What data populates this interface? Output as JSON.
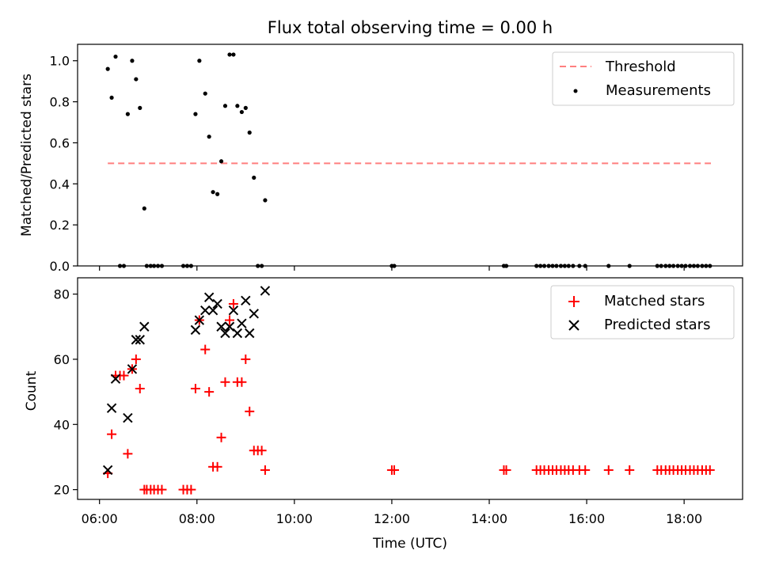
{
  "title": "Flux total observing time = 0.00 h",
  "colors": {
    "threshold": "#ff7f7f",
    "measurement": "#000000",
    "matched": "#ff0000",
    "predicted": "#000000"
  },
  "chart_data": [
    {
      "type": "scatter",
      "ylabel": "Matched/Predicted stars",
      "xlim": [
        5.55,
        19.2
      ],
      "ylim": [
        0,
        1.08
      ],
      "yticks": [
        0.0,
        0.2,
        0.4,
        0.6,
        0.8,
        1.0
      ],
      "ytick_labels": [
        "0.0",
        "0.2",
        "0.4",
        "0.6",
        "0.8",
        "1.0"
      ],
      "legend_position": "upper right",
      "threshold": {
        "name": "Threshold",
        "value": 0.5,
        "x": [
          6.17,
          18.55
        ]
      },
      "series": [
        {
          "name": "Measurements",
          "x": [
            6.17,
            6.25,
            6.33,
            6.42,
            6.5,
            6.58,
            6.67,
            6.75,
            6.83,
            6.92,
            6.97,
            7.05,
            7.12,
            7.2,
            7.28,
            7.72,
            7.8,
            7.88,
            7.97,
            8.05,
            8.17,
            8.25,
            8.33,
            8.42,
            8.5,
            8.58,
            8.67,
            8.75,
            8.83,
            8.92,
            9.0,
            9.08,
            9.17,
            9.25,
            9.33,
            9.4,
            12.0,
            12.05,
            14.3,
            14.35,
            14.97,
            15.05,
            15.13,
            15.22,
            15.3,
            15.38,
            15.47,
            15.55,
            15.63,
            15.72,
            15.85,
            15.97,
            16.45,
            16.88,
            17.45,
            17.53,
            17.62,
            17.7,
            17.78,
            17.87,
            17.95,
            18.03,
            18.12,
            18.2,
            18.28,
            18.37,
            18.45,
            18.53
          ],
          "y": [
            0.96,
            0.82,
            1.02,
            0,
            0,
            0.74,
            1.0,
            0.91,
            0.77,
            0.28,
            0,
            0,
            0,
            0,
            0,
            0,
            0,
            0,
            0.74,
            1.0,
            0.84,
            0.63,
            0.36,
            0.35,
            0.51,
            0.78,
            1.03,
            1.03,
            0.78,
            0.75,
            0.77,
            0.65,
            0.43,
            0,
            0,
            0.32,
            0,
            0,
            0,
            0,
            0,
            0,
            0,
            0,
            0,
            0,
            0,
            0,
            0,
            0,
            0,
            0,
            0,
            0,
            0,
            0,
            0,
            0,
            0,
            0,
            0,
            0,
            0,
            0,
            0,
            0,
            0,
            0
          ]
        }
      ]
    },
    {
      "type": "scatter",
      "xlabel": "Time (UTC)",
      "ylabel": "Count",
      "xlim": [
        5.55,
        19.2
      ],
      "ylim": [
        17,
        85
      ],
      "xticks": [
        6,
        8,
        10,
        12,
        14,
        16,
        18
      ],
      "xtick_labels": [
        "06:00",
        "08:00",
        "10:00",
        "12:00",
        "14:00",
        "16:00",
        "18:00"
      ],
      "yticks": [
        20,
        40,
        60,
        80
      ],
      "ytick_labels": [
        "20",
        "40",
        "60",
        "80"
      ],
      "legend_position": "upper right",
      "series": [
        {
          "name": "Matched stars",
          "marker": "plus",
          "x": [
            6.17,
            6.25,
            6.33,
            6.42,
            6.5,
            6.58,
            6.67,
            6.75,
            6.83,
            6.92,
            6.97,
            7.05,
            7.12,
            7.2,
            7.28,
            7.72,
            7.8,
            7.88,
            7.97,
            8.05,
            8.17,
            8.25,
            8.33,
            8.42,
            8.5,
            8.58,
            8.67,
            8.75,
            8.83,
            8.92,
            9.0,
            9.08,
            9.17,
            9.25,
            9.33,
            9.4,
            12.0,
            12.05,
            14.3,
            14.35,
            14.97,
            15.05,
            15.13,
            15.22,
            15.3,
            15.38,
            15.47,
            15.55,
            15.63,
            15.72,
            15.85,
            15.97,
            16.45,
            16.88,
            17.45,
            17.53,
            17.62,
            17.7,
            17.78,
            17.87,
            17.95,
            18.03,
            18.12,
            18.2,
            18.28,
            18.37,
            18.45,
            18.53
          ],
          "y": [
            25,
            37,
            55,
            55,
            55,
            31,
            57,
            60,
            51,
            20,
            20,
            20,
            20,
            20,
            20,
            20,
            20,
            20,
            51,
            72,
            63,
            50,
            27,
            27,
            36,
            53,
            72,
            77,
            53,
            53,
            60,
            44,
            32,
            32,
            32,
            26,
            26,
            26,
            26,
            26,
            26,
            26,
            26,
            26,
            26,
            26,
            26,
            26,
            26,
            26,
            26,
            26,
            26,
            26,
            26,
            26,
            26,
            26,
            26,
            26,
            26,
            26,
            26,
            26,
            26,
            26,
            26,
            26
          ]
        },
        {
          "name": "Predicted stars",
          "marker": "x",
          "x": [
            6.17,
            6.25,
            6.33,
            6.58,
            6.67,
            6.75,
            6.83,
            6.92,
            7.97,
            8.05,
            8.17,
            8.25,
            8.33,
            8.42,
            8.5,
            8.58,
            8.67,
            8.75,
            8.83,
            8.92,
            9.0,
            9.08,
            9.17,
            9.4
          ],
          "y": [
            26,
            45,
            54,
            42,
            57,
            66,
            66,
            70,
            69,
            72,
            75,
            79,
            75,
            77,
            70,
            68,
            70,
            75,
            68,
            71,
            78,
            68,
            74,
            81
          ]
        }
      ]
    }
  ]
}
